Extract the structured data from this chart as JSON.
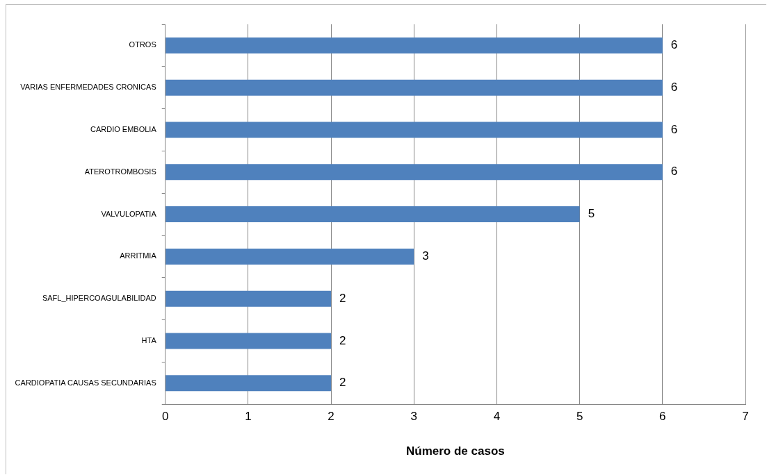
{
  "chart_data": {
    "type": "bar",
    "orientation": "horizontal",
    "xlabel": "Número de casos",
    "categories": [
      "OTROS",
      "VARIAS ENFERMEDADES CRONICAS",
      "CARDIO EMBOLIA",
      "ATEROTROMBOSIS",
      "VALVULOPATIA",
      "ARRITMIA",
      "SAFL_HIPERCOAGULABILIDAD",
      "HTA",
      "CARDIOPATIA CAUSAS SECUNDARIAS"
    ],
    "values": [
      6,
      6,
      6,
      6,
      5,
      3,
      2,
      2,
      2
    ],
    "color": "#4f81bd",
    "xlim": [
      0,
      7
    ],
    "xticks": [
      0,
      1,
      2,
      3,
      4,
      5,
      6,
      7
    ],
    "grid": "x",
    "data_labels": true,
    "legend": false
  }
}
